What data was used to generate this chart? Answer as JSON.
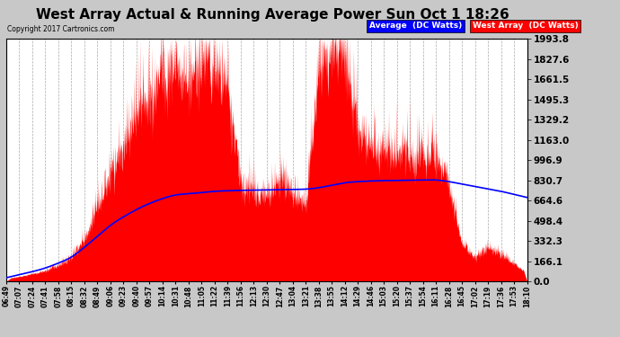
{
  "title": "West Array Actual & Running Average Power Sun Oct 1 18:26",
  "copyright": "Copyright 2017 Cartronics.com",
  "legend_avg": "Average  (DC Watts)",
  "legend_west": "West Array  (DC Watts)",
  "yticks": [
    0.0,
    166.1,
    332.3,
    498.4,
    664.6,
    830.7,
    996.9,
    1163.0,
    1329.2,
    1495.3,
    1661.5,
    1827.6,
    1993.8
  ],
  "ymax": 1993.8,
  "ymin": 0.0,
  "bg_color": "#c8c8c8",
  "plot_bg_color": "#ffffff",
  "grid_color": "#aaaaaa",
  "fill_color": "#ff0000",
  "line_color": "#0000ff",
  "title_fontsize": 12,
  "xtick_labels": [
    "06:49",
    "07:07",
    "07:24",
    "07:41",
    "07:58",
    "08:15",
    "08:32",
    "08:49",
    "09:06",
    "09:23",
    "09:40",
    "09:57",
    "10:14",
    "10:31",
    "10:48",
    "11:05",
    "11:22",
    "11:39",
    "11:56",
    "12:13",
    "12:30",
    "12:47",
    "13:04",
    "13:21",
    "13:38",
    "13:55",
    "14:12",
    "14:29",
    "14:46",
    "15:03",
    "15:20",
    "15:37",
    "15:54",
    "16:11",
    "16:28",
    "16:45",
    "17:02",
    "17:19",
    "17:36",
    "17:53",
    "18:10"
  ],
  "west_array_envelope": [
    20,
    40,
    60,
    90,
    130,
    200,
    350,
    600,
    900,
    1100,
    1380,
    1500,
    1700,
    1750,
    1650,
    1800,
    1750,
    1600,
    800,
    750,
    700,
    850,
    700,
    600,
    1700,
    1900,
    1900,
    1200,
    1100,
    1050,
    1050,
    1050,
    1000,
    1050,
    800,
    300,
    200,
    280,
    220,
    150,
    50
  ],
  "running_avg_values": [
    30,
    55,
    80,
    110,
    150,
    200,
    280,
    370,
    460,
    530,
    590,
    640,
    680,
    710,
    720,
    730,
    740,
    745,
    748,
    750,
    752,
    754,
    756,
    758,
    770,
    790,
    810,
    820,
    825,
    828,
    830,
    832,
    833,
    833,
    820,
    800,
    780,
    760,
    740,
    715,
    690
  ]
}
